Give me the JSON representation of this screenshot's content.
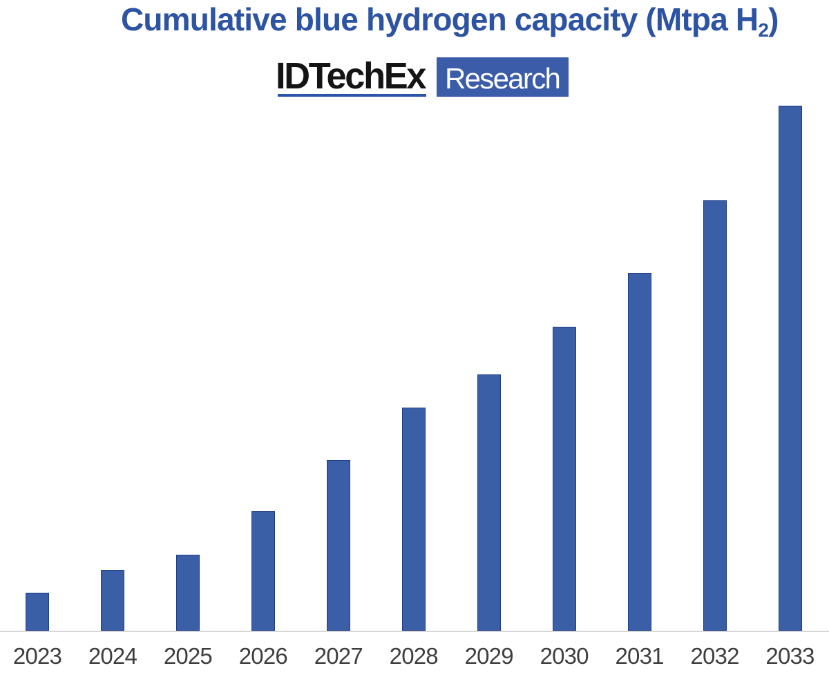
{
  "title": {
    "main": "Cumulative blue hydrogen capacity (Mtpa H",
    "subscript": "2",
    "end": ")",
    "color": "#2d53a3"
  },
  "logo": {
    "wordmark": "IDTechEx",
    "badge": "Research",
    "underline_color": "#2b55a9",
    "badge_bg_color": "#3a5ca9",
    "badge_text_color": "#ffffff"
  },
  "chart_data": {
    "type": "bar",
    "title": "Cumulative blue hydrogen capacity (Mtpa H2)",
    "categories": [
      "2023",
      "2024",
      "2025",
      "2026",
      "2027",
      "2028",
      "2029",
      "2030",
      "2031",
      "2032",
      "2033"
    ],
    "values": [
      1.43,
      2.3,
      2.89,
      4.54,
      6.49,
      8.49,
      9.75,
      11.57,
      13.62,
      16.37,
      20.0
    ],
    "xlabel": "",
    "ylabel": "",
    "ylim": [
      0,
      20
    ],
    "grid": false,
    "legend": false,
    "bar_fill_color": "#3a5fa6",
    "bar_border_color": "#1e3c88",
    "axis_line_color": "#d7d7d7",
    "label_color": "#3e3e3e"
  }
}
